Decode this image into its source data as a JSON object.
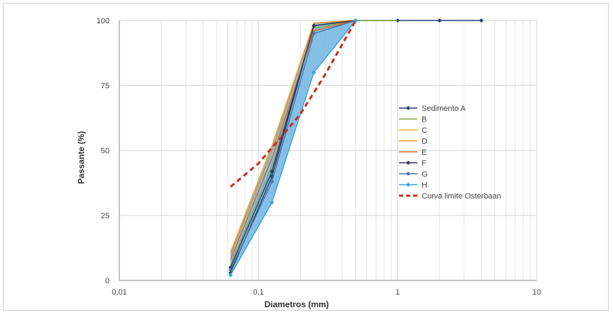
{
  "chart_data": {
    "type": "line",
    "title": "",
    "xlabel": "Diametros (mm)",
    "ylabel": "Passante (%)",
    "xscale": "log",
    "xlim": [
      0.01,
      10
    ],
    "ylim": [
      0,
      100
    ],
    "xticks": [
      0.01,
      0.1,
      1,
      10
    ],
    "xtick_labels": [
      "0,01",
      "0,1",
      "1",
      "10"
    ],
    "yticks": [
      0,
      25,
      50,
      75,
      100
    ],
    "ytick_labels": [
      "0",
      "25",
      "50",
      "75",
      "100"
    ],
    "grid": true,
    "legend_position": "right",
    "series": [
      {
        "name": "Sedimento A",
        "color": "#1f3f6e",
        "marker": "diamond",
        "x": [
          0.063,
          0.125,
          0.25,
          0.5,
          1,
          2,
          4
        ],
        "y": [
          3,
          40,
          98,
          100,
          100,
          100,
          100
        ]
      },
      {
        "name": "B",
        "color": "#8aa84a",
        "marker": "none",
        "x": [
          0.063,
          0.125,
          0.25,
          0.5,
          1
        ],
        "y": [
          6,
          44,
          97,
          100,
          100
        ]
      },
      {
        "name": "C",
        "color": "#e2b23a",
        "marker": "none",
        "x": [
          0.063,
          0.125,
          0.25,
          0.5
        ],
        "y": [
          11,
          52,
          99,
          100
        ]
      },
      {
        "name": "D",
        "color": "#f28a1e",
        "marker": "none",
        "x": [
          0.063,
          0.125,
          0.25,
          0.5
        ],
        "y": [
          10,
          50,
          99,
          100
        ]
      },
      {
        "name": "E",
        "color": "#d9622b",
        "marker": "none",
        "x": [
          0.063,
          0.125,
          0.25,
          0.5
        ],
        "y": [
          8,
          47,
          96,
          100
        ]
      },
      {
        "name": "F",
        "color": "#33334f",
        "marker": "diamond",
        "x": [
          0.063,
          0.125,
          0.25,
          0.5
        ],
        "y": [
          5,
          42,
          98,
          100
        ]
      },
      {
        "name": "G",
        "color": "#4b6fa8",
        "marker": "diamond",
        "x": [
          0.063,
          0.125,
          0.25,
          0.5
        ],
        "y": [
          4,
          38,
          95,
          100
        ]
      },
      {
        "name": "H",
        "color": "#3aa0d8",
        "marker": "diamond",
        "x": [
          0.063,
          0.125,
          0.25,
          0.5
        ],
        "y": [
          2,
          30,
          80,
          100
        ]
      }
    ],
    "envelope": {
      "color": "#6fb5e0",
      "x": [
        0.063,
        0.125,
        0.25,
        0.5
      ],
      "upper": [
        11,
        52,
        99,
        100
      ],
      "lower": [
        2,
        30,
        80,
        100
      ]
    },
    "reference_curve": {
      "name": "Curva limite Osterbaan",
      "color": "#cc2a1c",
      "x": [
        0.063,
        0.1,
        0.15,
        0.2,
        0.3,
        0.5
      ],
      "y": [
        36,
        45,
        56,
        64,
        79,
        100
      ]
    }
  }
}
